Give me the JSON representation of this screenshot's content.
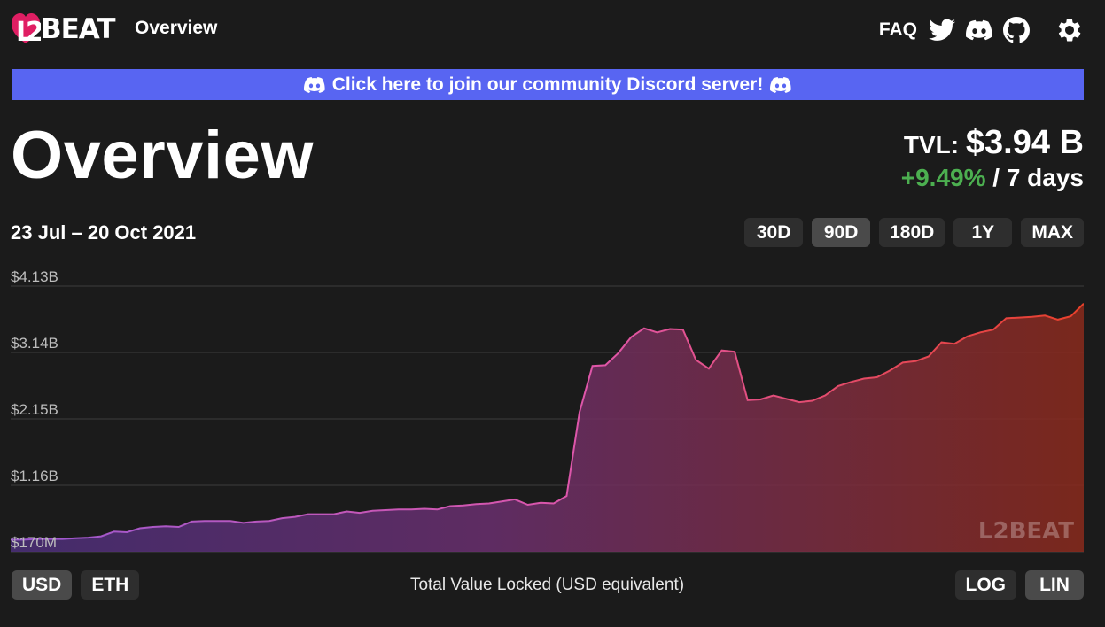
{
  "header": {
    "logo_text": "BEAT",
    "nav_label": "Overview",
    "faq_label": "FAQ",
    "icons": [
      "twitter-icon",
      "discord-icon",
      "github-icon",
      "gear-icon"
    ]
  },
  "banner": {
    "text": "Click here to join our community Discord server!",
    "color": "#5865f2"
  },
  "page": {
    "title": "Overview",
    "tvl_label": "TVL:",
    "tvl_value": "$3.94 B",
    "change_value": "+9.49%",
    "change_suffix": "/ 7 days",
    "date_range": "23 Jul – 20 Oct 2021"
  },
  "range_buttons": [
    {
      "label": "30D",
      "active": false
    },
    {
      "label": "90D",
      "active": true
    },
    {
      "label": "180D",
      "active": false
    },
    {
      "label": "1Y",
      "active": false
    },
    {
      "label": "MAX",
      "active": false
    }
  ],
  "currency_buttons": [
    {
      "label": "USD",
      "active": true
    },
    {
      "label": "ETH",
      "active": false
    }
  ],
  "scale_buttons": [
    {
      "label": "LOG",
      "active": false
    },
    {
      "label": "LIN",
      "active": true
    }
  ],
  "chart_caption": "Total Value Locked (USD equivalent)",
  "chart_data": {
    "type": "area",
    "title": "",
    "xlabel": "Total Value Locked (USD equivalent)",
    "ylabel": "",
    "y_tick_labels": [
      "$4.13B",
      "$3.14B",
      "$2.15B",
      "$1.16B",
      "$170M"
    ],
    "y_ticks": [
      4.13,
      3.14,
      2.15,
      1.16,
      0.17
    ],
    "ylim": [
      0.17,
      4.13
    ],
    "x_range": [
      "23 Jul 2021",
      "20 Oct 2021"
    ],
    "grid": true,
    "gradient_colors": [
      "#6b3fa0",
      "#c0392b"
    ],
    "line_colors": [
      "#d45bb5",
      "#e74c3c"
    ],
    "watermark": "L2BEAT",
    "values": [
      0.35,
      0.35,
      0.36,
      0.36,
      0.36,
      0.37,
      0.38,
      0.4,
      0.47,
      0.46,
      0.52,
      0.54,
      0.55,
      0.54,
      0.62,
      0.63,
      0.63,
      0.63,
      0.6,
      0.62,
      0.63,
      0.67,
      0.69,
      0.73,
      0.73,
      0.73,
      0.77,
      0.75,
      0.78,
      0.79,
      0.8,
      0.8,
      0.81,
      0.8,
      0.85,
      0.86,
      0.88,
      0.89,
      0.92,
      0.95,
      0.87,
      0.9,
      0.89,
      1.0,
      2.25,
      2.94,
      2.95,
      3.13,
      3.37,
      3.5,
      3.44,
      3.49,
      3.48,
      3.03,
      2.9,
      3.17,
      3.15,
      2.43,
      2.44,
      2.5,
      2.45,
      2.4,
      2.42,
      2.5,
      2.64,
      2.7,
      2.75,
      2.77,
      2.87,
      2.99,
      3.01,
      3.08,
      3.29,
      3.27,
      3.38,
      3.44,
      3.48,
      3.65,
      3.66,
      3.67,
      3.69,
      3.63,
      3.68,
      3.87
    ]
  }
}
